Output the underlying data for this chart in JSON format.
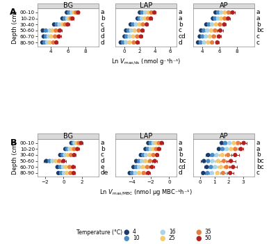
{
  "depths": [
    "00-10",
    "10-20",
    "30-40",
    "50-60",
    "60-70",
    "80-90"
  ],
  "temps": [
    4,
    10,
    16,
    25,
    35,
    50
  ],
  "temp_colors": [
    "#1a3a6b",
    "#4a8bc4",
    "#aad4e8",
    "#f5c96e",
    "#e87d3e",
    "#b02020"
  ],
  "panel_A": {
    "BG": {
      "means": [
        [
          5.85,
          6.1,
          6.4,
          6.65,
          6.9,
          7.15
        ],
        [
          5.35,
          5.6,
          5.9,
          6.1,
          6.3,
          6.5
        ],
        [
          4.4,
          4.7,
          5.0,
          5.35,
          5.65,
          5.95
        ],
        [
          3.1,
          3.45,
          3.9,
          4.2,
          4.6,
          5.05
        ],
        [
          3.2,
          3.45,
          3.75,
          4.05,
          4.5,
          4.95
        ],
        [
          3.05,
          3.3,
          3.6,
          3.9,
          4.3,
          4.65
        ]
      ],
      "errors": [
        [
          0.08,
          0.08,
          0.08,
          0.08,
          0.08,
          0.15
        ],
        [
          0.08,
          0.08,
          0.08,
          0.08,
          0.08,
          0.15
        ],
        [
          0.12,
          0.12,
          0.12,
          0.12,
          0.12,
          0.18
        ],
        [
          0.18,
          0.18,
          0.18,
          0.18,
          0.18,
          0.22
        ],
        [
          0.15,
          0.15,
          0.15,
          0.15,
          0.15,
          0.22
        ],
        [
          0.12,
          0.12,
          0.12,
          0.12,
          0.12,
          0.18
        ]
      ],
      "xlim": [
        2.5,
        9.5
      ],
      "xticks": [
        4,
        6,
        8
      ],
      "letters": [
        "a",
        "b",
        "c",
        "d",
        "d",
        "d"
      ]
    },
    "LAP": {
      "means": [
        [
          2.0,
          2.3,
          2.7,
          3.1,
          3.5,
          3.9
        ],
        [
          1.7,
          1.95,
          2.25,
          2.65,
          3.05,
          3.45
        ],
        [
          0.8,
          1.1,
          1.5,
          1.95,
          2.4,
          2.9
        ],
        [
          0.2,
          0.5,
          0.85,
          1.3,
          1.85,
          2.35
        ],
        [
          0.0,
          0.25,
          0.65,
          1.1,
          1.65,
          2.15
        ],
        [
          -0.5,
          -0.2,
          0.2,
          0.65,
          1.2,
          1.7
        ]
      ],
      "errors": [
        [
          0.08,
          0.08,
          0.08,
          0.08,
          0.12,
          0.18
        ],
        [
          0.08,
          0.08,
          0.08,
          0.08,
          0.12,
          0.18
        ],
        [
          0.08,
          0.08,
          0.08,
          0.08,
          0.12,
          0.18
        ],
        [
          0.12,
          0.12,
          0.12,
          0.12,
          0.18,
          0.22
        ],
        [
          0.12,
          0.12,
          0.12,
          0.12,
          0.18,
          0.22
        ],
        [
          0.08,
          0.08,
          0.08,
          0.08,
          0.12,
          0.18
        ]
      ],
      "xlim": [
        -1.2,
        6.8
      ],
      "xticks": [
        0,
        2,
        4,
        6
      ],
      "letters": [
        "a",
        "a",
        "b",
        "c",
        "cd",
        "d"
      ]
    },
    "AP": {
      "means": [
        [
          5.55,
          5.85,
          6.2,
          6.6,
          7.05,
          7.5
        ],
        [
          5.25,
          5.5,
          5.85,
          6.2,
          6.6,
          7.0
        ],
        [
          4.5,
          4.8,
          5.15,
          5.6,
          6.05,
          6.55
        ],
        [
          3.9,
          4.2,
          4.6,
          5.05,
          5.5,
          6.1
        ],
        [
          3.75,
          4.05,
          4.45,
          4.9,
          5.35,
          5.95
        ],
        [
          3.55,
          3.85,
          4.25,
          4.7,
          5.15,
          5.75
        ]
      ],
      "errors": [
        [
          0.08,
          0.08,
          0.08,
          0.08,
          0.18,
          0.28
        ],
        [
          0.08,
          0.08,
          0.08,
          0.08,
          0.12,
          0.18
        ],
        [
          0.08,
          0.08,
          0.08,
          0.08,
          0.12,
          0.18
        ],
        [
          0.12,
          0.12,
          0.12,
          0.12,
          0.22,
          0.32
        ],
        [
          0.12,
          0.12,
          0.12,
          0.12,
          0.18,
          0.22
        ],
        [
          0.08,
          0.08,
          0.08,
          0.08,
          0.12,
          0.18
        ]
      ],
      "xlim": [
        3.0,
        10.0
      ],
      "xticks": [
        4,
        6,
        8
      ],
      "letters": [
        "a",
        "a",
        "b",
        "bc",
        "c",
        "c"
      ]
    }
  },
  "panel_B": {
    "BG": {
      "means": [
        [
          0.85,
          1.05,
          1.2,
          1.45,
          1.65,
          1.9
        ],
        [
          0.2,
          0.4,
          0.65,
          0.9,
          1.15,
          1.5
        ],
        [
          -0.35,
          -0.1,
          0.15,
          0.45,
          0.8,
          1.15
        ],
        [
          -1.85,
          -1.5,
          -1.2,
          -0.85,
          -0.45,
          0.0
        ],
        [
          -0.65,
          -0.35,
          -0.05,
          0.25,
          0.65,
          1.05
        ],
        [
          -0.55,
          -0.25,
          0.05,
          0.35,
          0.75,
          1.1
        ]
      ],
      "errors": [
        [
          0.08,
          0.08,
          0.08,
          0.08,
          0.12,
          0.18
        ],
        [
          0.08,
          0.08,
          0.08,
          0.08,
          0.12,
          0.18
        ],
        [
          0.08,
          0.08,
          0.08,
          0.08,
          0.12,
          0.18
        ],
        [
          0.28,
          0.28,
          0.28,
          0.28,
          0.28,
          0.28
        ],
        [
          0.08,
          0.08,
          0.08,
          0.08,
          0.12,
          0.18
        ],
        [
          0.08,
          0.08,
          0.08,
          0.08,
          0.12,
          0.18
        ]
      ],
      "xlim": [
        -2.8,
        3.8
      ],
      "xticks": [
        -2,
        0,
        2
      ],
      "letters": [
        "a",
        "b",
        "c",
        "d",
        "e",
        "de"
      ]
    },
    "LAP": {
      "means": [
        [
          -2.25,
          -2.0,
          -1.7,
          -1.4,
          -1.1,
          -0.8
        ],
        [
          -2.55,
          -2.3,
          -2.0,
          -1.7,
          -1.4,
          -1.1
        ],
        [
          -3.05,
          -2.8,
          -2.5,
          -2.1,
          -1.7,
          -1.3
        ],
        [
          -3.55,
          -3.25,
          -2.95,
          -2.55,
          -2.05,
          -1.55
        ],
        [
          -3.85,
          -3.55,
          -3.25,
          -2.85,
          -2.35,
          -1.85
        ],
        [
          -4.25,
          -4.0,
          -3.65,
          -3.25,
          -2.75,
          -2.25
        ]
      ],
      "errors": [
        [
          0.08,
          0.08,
          0.08,
          0.08,
          0.12,
          0.18
        ],
        [
          0.08,
          0.08,
          0.08,
          0.08,
          0.12,
          0.18
        ],
        [
          0.08,
          0.08,
          0.08,
          0.08,
          0.12,
          0.18
        ],
        [
          0.18,
          0.18,
          0.18,
          0.18,
          0.22,
          0.28
        ],
        [
          0.18,
          0.18,
          0.18,
          0.18,
          0.22,
          0.28
        ],
        [
          0.12,
          0.12,
          0.12,
          0.12,
          0.18,
          0.22
        ]
      ],
      "xlim": [
        -5.8,
        0.8
      ],
      "xticks": [
        -4,
        -2,
        0
      ],
      "letters": [
        "a",
        "a",
        "b",
        "bc",
        "cd",
        "d"
      ]
    },
    "AP": {
      "means": [
        [
          1.5,
          1.75,
          2.05,
          2.35,
          2.65,
          3.05
        ],
        [
          1.3,
          1.55,
          1.85,
          2.15,
          2.45,
          2.85
        ],
        [
          0.55,
          0.85,
          1.15,
          1.55,
          1.95,
          2.45
        ],
        [
          0.25,
          0.55,
          0.85,
          1.25,
          1.65,
          2.15
        ],
        [
          0.45,
          0.75,
          1.05,
          1.45,
          1.85,
          2.3
        ],
        [
          0.2,
          0.5,
          0.8,
          1.2,
          1.6,
          2.1
        ]
      ],
      "errors": [
        [
          0.08,
          0.08,
          0.08,
          0.08,
          0.12,
          0.22
        ],
        [
          0.08,
          0.08,
          0.08,
          0.08,
          0.12,
          0.18
        ],
        [
          0.18,
          0.18,
          0.18,
          0.18,
          0.22,
          0.28
        ],
        [
          0.22,
          0.22,
          0.22,
          0.22,
          0.28,
          0.32
        ],
        [
          0.18,
          0.18,
          0.18,
          0.18,
          0.22,
          0.28
        ],
        [
          0.12,
          0.12,
          0.12,
          0.12,
          0.18,
          0.22
        ]
      ],
      "xlim": [
        -0.5,
        3.8
      ],
      "xticks": [
        0,
        1,
        2,
        3
      ],
      "letters": [
        "a",
        "a",
        "b",
        "bc",
        "bc",
        "c"
      ]
    }
  },
  "xlabel_A": "Ln $\\mathit{V}_{\\mathrm{max/ds}}$ (nmol g⁻¹h⁻¹)",
  "xlabel_B": "Ln $\\mathit{V}_{\\mathrm{max/MBC}}$ (nmol μg MBC⁻¹h⁻¹)",
  "ylabel": "Depth (cm)",
  "enzymes": [
    "BG",
    "LAP",
    "AP"
  ],
  "legend_temps": [
    4,
    10,
    16,
    25,
    35,
    50
  ],
  "legend_colors": [
    "#1a3a6b",
    "#4a8bc4",
    "#aad4e8",
    "#f5c96e",
    "#e87d3e",
    "#b02020"
  ],
  "header_gray": "#d9d9d9",
  "panel_gray": "#f0f0f0"
}
